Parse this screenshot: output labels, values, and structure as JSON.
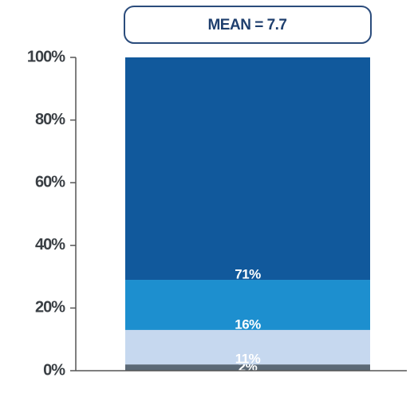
{
  "chart_data": {
    "type": "stacked_bar",
    "annotation": "MEAN = 7.7",
    "categories": [
      null
    ],
    "series": [
      {
        "color": "#5b6976",
        "values": [
          2
        ],
        "value_labels": [
          "2%"
        ]
      },
      {
        "color": "#c6d8ef",
        "values": [
          11
        ],
        "value_labels": [
          "11%"
        ]
      },
      {
        "color": "#1d8fcf",
        "values": [
          16
        ],
        "value_labels": [
          "16%"
        ]
      },
      {
        "color": "#11599c",
        "values": [
          71
        ],
        "value_labels": [
          "71%"
        ]
      }
    ],
    "ylim": [
      0,
      100
    ],
    "yticks": [
      {
        "value": 0,
        "label": "0%"
      },
      {
        "value": 20,
        "label": "20%"
      },
      {
        "value": 40,
        "label": "40%"
      },
      {
        "value": 60,
        "label": "60%"
      },
      {
        "value": 80,
        "label": "80%"
      },
      {
        "value": 100,
        "label": "100%"
      }
    ]
  }
}
